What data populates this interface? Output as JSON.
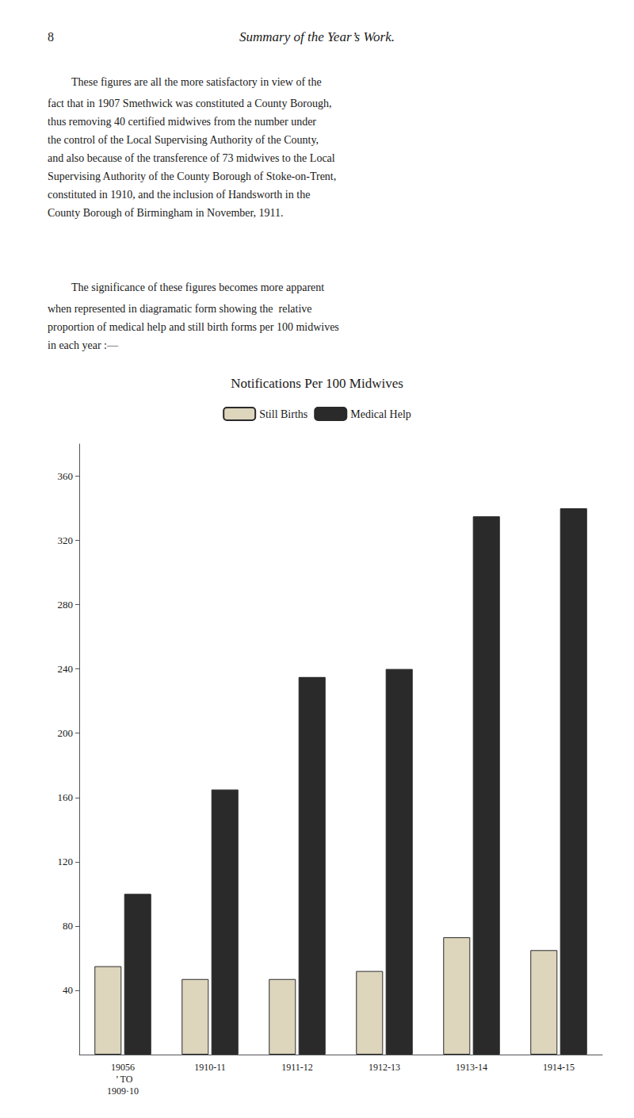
{
  "chart_data": {
    "type": "bar",
    "title": "Notifications Per 100 Midwives",
    "categories": [
      "19056\n ’ TO\n1909·10",
      "1910-11",
      "1911-12",
      "1912-13",
      "1913-14",
      "1914-15"
    ],
    "series": [
      {
        "name": "Still Births",
        "color": "#ddd5bc",
        "values": [
          55,
          47,
          47,
          52,
          73,
          65
        ]
      },
      {
        "name": "Medical Help",
        "color": "#2a2a2a",
        "values": [
          100,
          165,
          235,
          240,
          335,
          340
        ]
      }
    ],
    "ylim": [
      0,
      380
    ],
    "yticks": [
      40,
      80,
      120,
      160,
      200,
      240,
      280,
      320,
      360
    ],
    "grid": false,
    "legend": "top",
    "annotations": [
      "8",
      "Summary of the Year’s Work.",
      "These figures are all the more satisfactory in view of the\nfact that in 1907 Smethwick was constituted a County Borough,\nthus removing 40 certified midwives from the number under\nthe control of the Local Supervising Authority of the County,\nand also because of the transference of 73 midwives to the Local\nSupervising Authority of the County Borough of Stoke-on-Trent,\nconstituted in 1910, and the inclusion of Handsworth in the\nCounty Borough of Birmingham in November, 1911.",
      "The significance of these figures becomes more apparent\nwhen represented in diagramatic form showing the  relative\nproportion of medical help and still birth forms per 100 midwives\nin each year :—"
    ]
  }
}
